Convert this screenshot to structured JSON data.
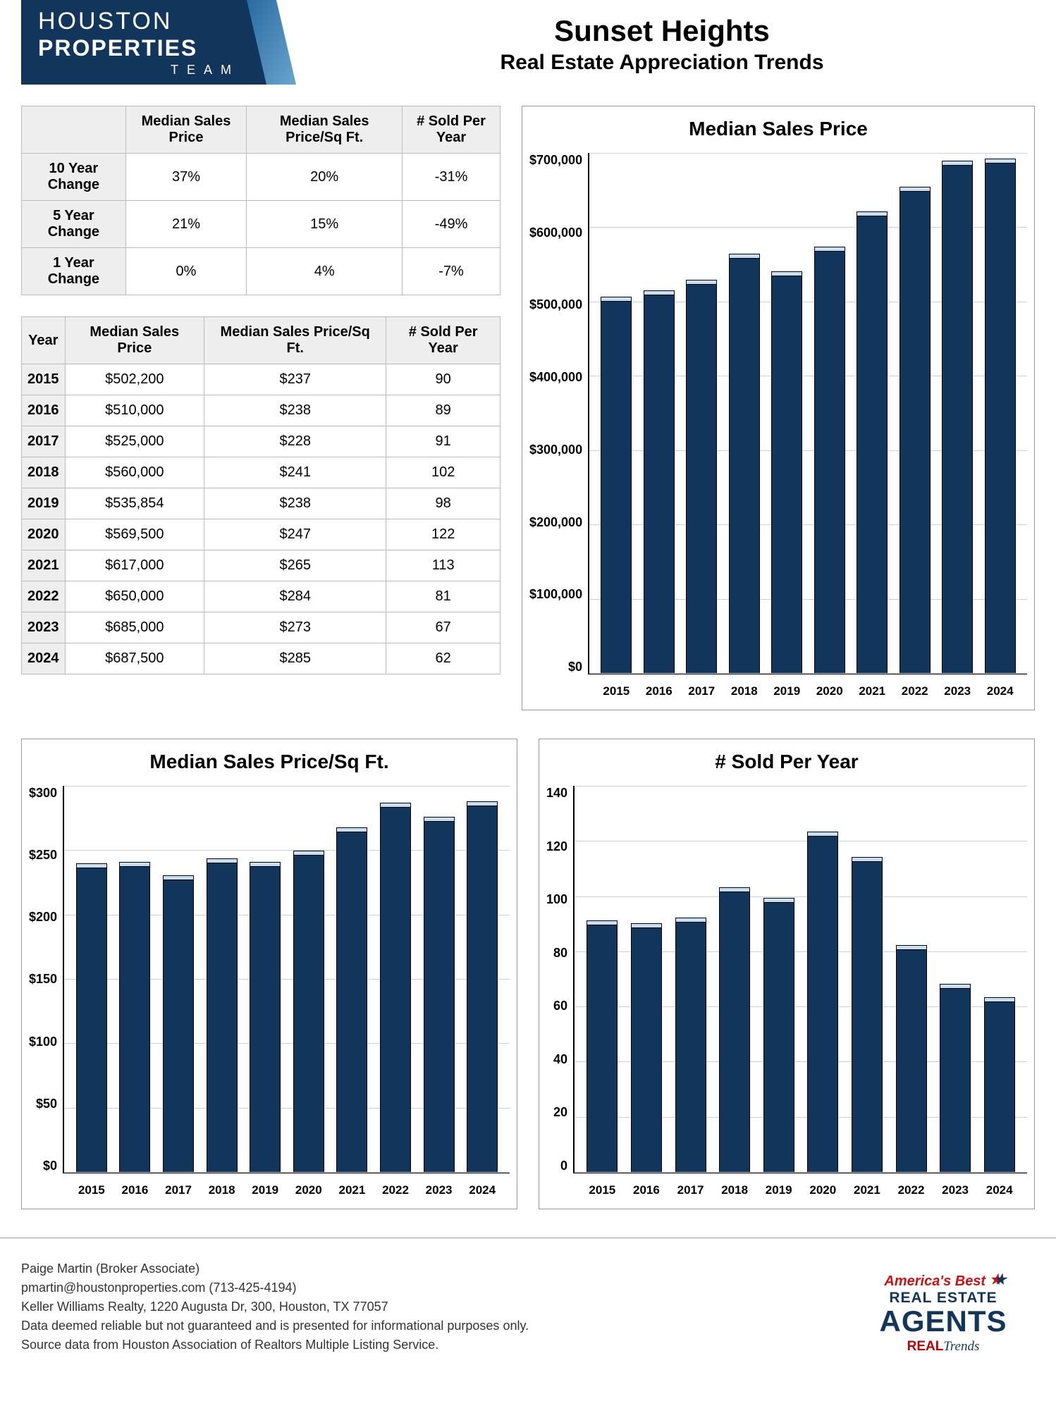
{
  "logo": {
    "line1": "HOUSTON",
    "line2": "PROPERTIES",
    "line3": "TEAM",
    "bg_color": "#12365b",
    "text_color": "#ffffff"
  },
  "title": {
    "main": "Sunset Heights",
    "sub": "Real Estate Appreciation Trends"
  },
  "summary_table": {
    "columns": [
      "",
      "Median Sales Price",
      "Median Sales Price/Sq Ft.",
      "# Sold Per Year"
    ],
    "rows": [
      {
        "label": "10 Year Change",
        "v1": "37%",
        "v2": "20%",
        "v3": "-31%"
      },
      {
        "label": "5 Year Change",
        "v1": "21%",
        "v2": "15%",
        "v3": "-49%"
      },
      {
        "label": "1 Year Change",
        "v1": "0%",
        "v2": "4%",
        "v3": "-7%"
      }
    ]
  },
  "yearly_table": {
    "columns": [
      "Year",
      "Median Sales Price",
      "Median Sales Price/Sq Ft.",
      "# Sold Per Year"
    ],
    "rows": [
      {
        "year": "2015",
        "price": "$502,200",
        "psf": "$237",
        "sold": "90"
      },
      {
        "year": "2016",
        "price": "$510,000",
        "psf": "$238",
        "sold": "89"
      },
      {
        "year": "2017",
        "price": "$525,000",
        "psf": "$228",
        "sold": "91"
      },
      {
        "year": "2018",
        "price": "$560,000",
        "psf": "$241",
        "sold": "102"
      },
      {
        "year": "2019",
        "price": "$535,854",
        "psf": "$238",
        "sold": "98"
      },
      {
        "year": "2020",
        "price": "$569,500",
        "psf": "$247",
        "sold": "122"
      },
      {
        "year": "2021",
        "price": "$617,000",
        "psf": "$265",
        "sold": "113"
      },
      {
        "year": "2022",
        "price": "$650,000",
        "psf": "$284",
        "sold": "81"
      },
      {
        "year": "2023",
        "price": "$685,000",
        "psf": "$273",
        "sold": "67"
      },
      {
        "year": "2024",
        "price": "$687,500",
        "psf": "$285",
        "sold": "62"
      }
    ]
  },
  "chart_price": {
    "type": "bar",
    "title": "Median Sales Price",
    "categories": [
      "2015",
      "2016",
      "2017",
      "2018",
      "2019",
      "2020",
      "2021",
      "2022",
      "2023",
      "2024"
    ],
    "values": [
      502200,
      510000,
      525000,
      560000,
      535854,
      569500,
      617000,
      650000,
      685000,
      687500
    ],
    "ylim": [
      0,
      700000
    ],
    "ytick_step": 100000,
    "yticks": [
      "$700,000",
      "$600,000",
      "$500,000",
      "$400,000",
      "$300,000",
      "$200,000",
      "$100,000",
      "$0"
    ],
    "bar_color": "#12365b",
    "grid_color": "#d0d0d0",
    "background_color": "#ffffff"
  },
  "chart_psf": {
    "type": "bar",
    "title": "Median Sales Price/Sq Ft.",
    "categories": [
      "2015",
      "2016",
      "2017",
      "2018",
      "2019",
      "2020",
      "2021",
      "2022",
      "2023",
      "2024"
    ],
    "values": [
      237,
      238,
      228,
      241,
      238,
      247,
      265,
      284,
      273,
      285
    ],
    "ylim": [
      0,
      300
    ],
    "ytick_step": 50,
    "yticks": [
      "$300",
      "$250",
      "$200",
      "$150",
      "$100",
      "$50",
      "$0"
    ],
    "bar_color": "#12365b",
    "grid_color": "#d0d0d0"
  },
  "chart_sold": {
    "type": "bar",
    "title": "# Sold Per Year",
    "categories": [
      "2015",
      "2016",
      "2017",
      "2018",
      "2019",
      "2020",
      "2021",
      "2022",
      "2023",
      "2024"
    ],
    "values": [
      90,
      89,
      91,
      102,
      98,
      122,
      113,
      81,
      67,
      62
    ],
    "ylim": [
      0,
      140
    ],
    "ytick_step": 20,
    "yticks": [
      "140",
      "120",
      "100",
      "80",
      "60",
      "40",
      "20",
      "0"
    ],
    "bar_color": "#12365b",
    "grid_color": "#d0d0d0"
  },
  "footer": {
    "line1": "Paige Martin (Broker Associate)",
    "line2": "pmartin@houstonproperties.com (713-425-4194)",
    "line3": "Keller Williams Realty, 1220 Augusta Dr, 300, Houston, TX 77057",
    "line4": "Data deemed reliable but not guaranteed and is presented for informational purposes only.",
    "line5": "Source data from Houston Association of Realtors Multiple Listing Service."
  },
  "badge": {
    "line1": "America's Best",
    "line2": "REAL ESTATE",
    "line3": "AGENTS",
    "line4a": "REAL",
    "line4b": "Trends"
  }
}
